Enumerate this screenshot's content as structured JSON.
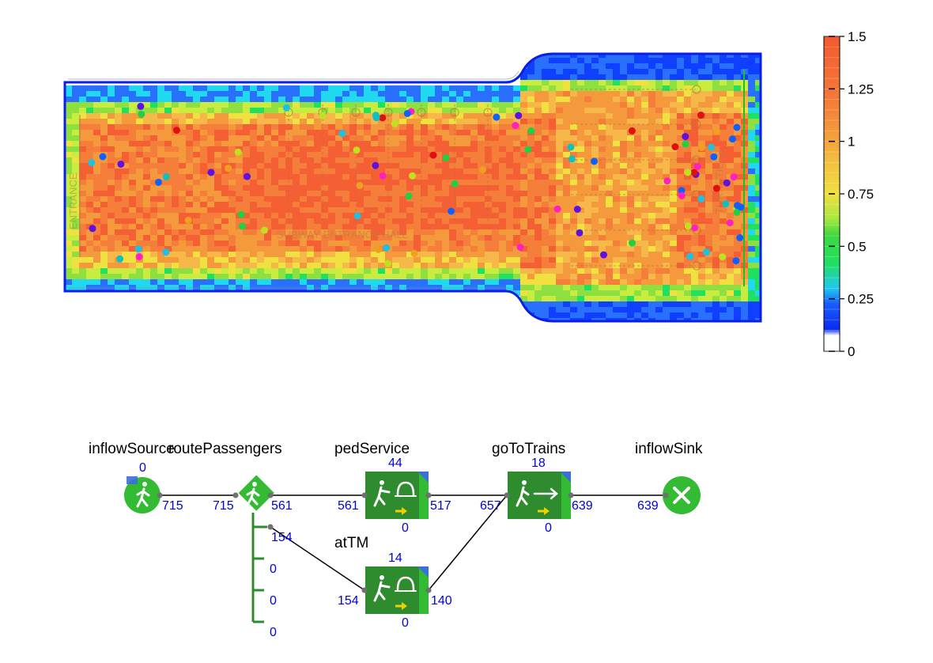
{
  "heatmap": {
    "hall_label": "SUBWAY ENTRANCE HALL",
    "entrance_label": "ENTRANCE",
    "turnstiles_label": "TURNSTILES",
    "palette": {
      "0": "#f2f2f0",
      "0.1": "#1040ff",
      "0.25": "#20d8f0",
      "0.4": "#20e060",
      "0.55": "#a8e840",
      "0.75": "#f0e040",
      "0.9": "#f6b040",
      "1.0": "#f59a3c",
      "1.25": "#f46a38",
      "1.5": "#f45a30"
    },
    "outline_color": "#0a1ee8",
    "dot_colors": [
      "#e01010",
      "#20d040",
      "#ff20c0",
      "#1060ff",
      "#6010e0",
      "#20c0e0",
      "#f0a020",
      "#c0e020",
      "#10c0c0"
    ]
  },
  "legend": {
    "ticks": [
      "1.5",
      "1.25",
      "1",
      "0.75",
      "0.5",
      "0.25",
      "0"
    ],
    "max": 1.5,
    "min": 0
  },
  "flowchart": {
    "blocks": {
      "inflowSource": {
        "name": "inflowSource",
        "count_top": "0",
        "out": "715"
      },
      "routePassengers": {
        "name": "routePassengers",
        "in": "715",
        "out_main": "561",
        "out_branches": [
          "154",
          "0",
          "0",
          "0"
        ]
      },
      "pedService": {
        "name": "pedService",
        "count_top": "44",
        "in": "561",
        "out": "517",
        "count_bottom": "0"
      },
      "atTM": {
        "name": "atTM",
        "count_top": "14",
        "in": "154",
        "out": "140",
        "count_bottom": "0"
      },
      "goToTrains": {
        "name": "goToTrains",
        "count_top": "18",
        "in": "657",
        "out": "639",
        "count_bottom": "0"
      },
      "inflowSink": {
        "name": "inflowSink",
        "in": "639"
      }
    },
    "colors": {
      "block_green": "#2e8b2e",
      "block_green_light": "#33bb33",
      "arrow_yellow": "#f0d000",
      "corner_blue": "#3a6ed8",
      "port_gray": "#707070"
    }
  }
}
